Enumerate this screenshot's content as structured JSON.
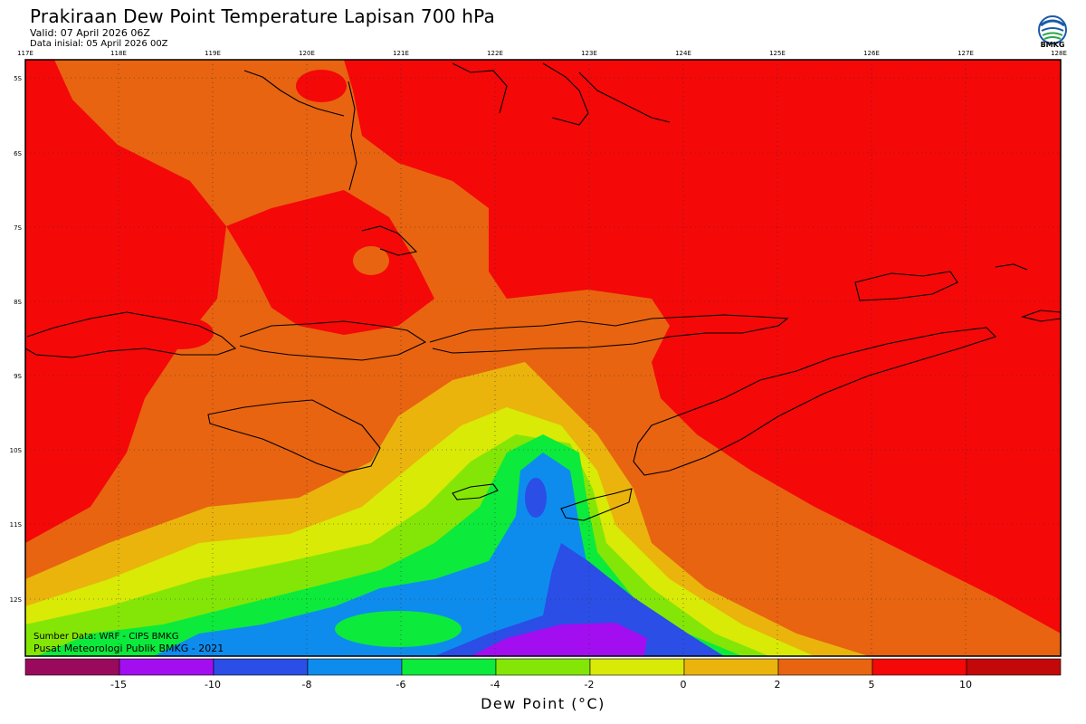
{
  "header": {
    "title": "Prakiraan Dew Point Temperature Lapisan 700 hPa",
    "valid": "Valid: 07 April 2026 06Z",
    "init": "Data inisial: 05 April 2026 00Z",
    "logo_text": "BMKG"
  },
  "map": {
    "lon_labels": [
      "117E",
      "118E",
      "119E",
      "120E",
      "121E",
      "122E",
      "123E",
      "124E",
      "125E",
      "126E",
      "127E",
      "128E"
    ],
    "lat_labels": [
      "5S",
      "6S",
      "7S",
      "8S",
      "9S",
      "10S",
      "11S",
      "12S"
    ],
    "source": "Sumber Data: WRF - CIPS BMKG",
    "credit": "Pusat Meteorologi Publik BMKG - 2021"
  },
  "colorbar": {
    "colors": [
      "#9a0a5c",
      "#a20ef0",
      "#2a4ee6",
      "#0e8cee",
      "#0cea3c",
      "#84e606",
      "#d8ea06",
      "#eab40c",
      "#e86410",
      "#f40808",
      "#c20808"
    ],
    "labels": [
      "-15",
      "-10",
      "-8",
      "-6",
      "-4",
      "-2",
      "0",
      "2",
      "5",
      "10"
    ],
    "title": "Dew Point (°C)"
  }
}
